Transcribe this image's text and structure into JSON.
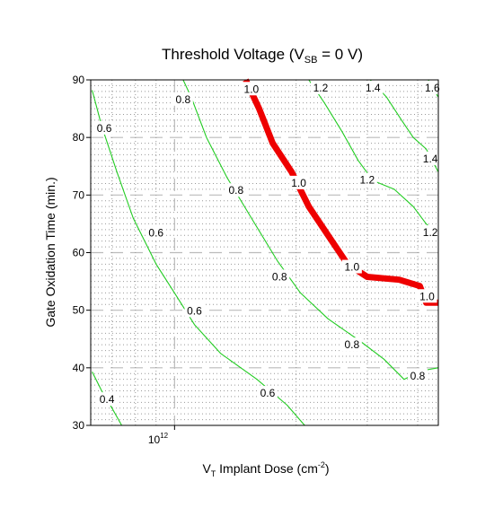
{
  "chart_data": {
    "type": "line",
    "title": "Threshold Voltage (V",
    "title_sub": "SB",
    "title_tail": " = 0 V)",
    "xlabel": "V",
    "xlabel_sub": "T",
    "xlabel_tail": " Implant Dose (cm",
    "xlabel_sup": "-2",
    "xlabel_end": ")",
    "ylabel": "Gate Oxidation Time (min.)",
    "x_scale": "log",
    "xlim": [
      620000000000.0,
      4500000000000.0
    ],
    "ylim": [
      30,
      90
    ],
    "x_tick_label": {
      "base": "10",
      "exp": "12",
      "value": 1000000000000.0
    },
    "y_ticks": [
      30,
      40,
      50,
      60,
      70,
      80,
      90
    ],
    "grid": true,
    "colors": {
      "contour": "#22cc22",
      "highlight": "#ee0000",
      "grid_major": "#bbbbbb",
      "grid_minor": "#999999"
    },
    "series": [
      {
        "level": "0.4",
        "points": [
          [
            625000000000.0,
            39.3
          ],
          [
            660000000000.0,
            36
          ],
          [
            700000000000.0,
            33
          ],
          [
            740000000000.0,
            30
          ]
        ]
      },
      {
        "level": "0.6",
        "points": [
          [
            625000000000.0,
            88.2
          ],
          [
            660000000000.0,
            82
          ],
          [
            720000000000.0,
            74
          ],
          [
            790000000000.0,
            66
          ],
          [
            900000000000.0,
            58
          ],
          [
            1000000000000.0,
            53
          ],
          [
            1120000000000.0,
            47.5
          ],
          [
            1300000000000.0,
            42.5
          ],
          [
            1600000000000.0,
            38
          ],
          [
            1900000000000.0,
            33.5
          ],
          [
            2100000000000.0,
            30
          ]
        ]
      },
      {
        "level": "0.8",
        "points": [
          [
            1050000000000.0,
            90
          ],
          [
            1100000000000.0,
            87
          ],
          [
            1200000000000.0,
            80
          ],
          [
            1350000000000.0,
            73
          ],
          [
            1550000000000.0,
            66
          ],
          [
            1800000000000.0,
            58.5
          ],
          [
            2050000000000.0,
            53
          ],
          [
            2400000000000.0,
            48.5
          ],
          [
            2900000000000.0,
            44.5
          ],
          [
            3300000000000.0,
            41.5
          ],
          [
            3700000000000.0,
            38
          ],
          [
            4100000000000.0,
            39.5
          ],
          [
            4500000000000.0,
            40
          ]
        ]
      },
      {
        "level": "1.0",
        "highlight": true,
        "points": [
          [
            1500000000000.0,
            90
          ],
          [
            1620000000000.0,
            85
          ],
          [
            1750000000000.0,
            79
          ],
          [
            1950000000000.0,
            74
          ],
          [
            2150000000000.0,
            68
          ],
          [
            2400000000000.0,
            63
          ],
          [
            2680000000000.0,
            58
          ],
          [
            3000000000000.0,
            55.8
          ],
          [
            3600000000000.0,
            55.3
          ],
          [
            4050000000000.0,
            54.2
          ],
          [
            4200000000000.0,
            51.3
          ],
          [
            4500000000000.0,
            51.3
          ]
        ]
      },
      {
        "level": "1.2",
        "points": [
          [
            2150000000000.0,
            90
          ],
          [
            2350000000000.0,
            86
          ],
          [
            2600000000000.0,
            81
          ],
          [
            2850000000000.0,
            76
          ],
          [
            3100000000000.0,
            72.5
          ],
          [
            3500000000000.0,
            71
          ],
          [
            3900000000000.0,
            68
          ],
          [
            4200000000000.0,
            65
          ],
          [
            4500000000000.0,
            63
          ]
        ]
      },
      {
        "level": "1.4",
        "points": [
          [
            3050000000000.0,
            90
          ],
          [
            3350000000000.0,
            87
          ],
          [
            3650000000000.0,
            83
          ],
          [
            3900000000000.0,
            80
          ],
          [
            4200000000000.0,
            78
          ],
          [
            4500000000000.0,
            74
          ]
        ]
      },
      {
        "level": "1.6",
        "points": [
          [
            4250000000000.0,
            90
          ],
          [
            4500000000000.0,
            87
          ]
        ]
      }
    ],
    "contour_labels": [
      {
        "text": "0.4",
        "x": 680000000000.0,
        "y": 34.5
      },
      {
        "text": "0.6",
        "x": 670000000000.0,
        "y": 81.6
      },
      {
        "text": "0.6",
        "x": 900000000000.0,
        "y": 63.4
      },
      {
        "text": "0.6",
        "x": 1120000000000.0,
        "y": 49.9
      },
      {
        "text": "0.6",
        "x": 1700000000000.0,
        "y": 35.6
      },
      {
        "text": "0.8",
        "x": 1050000000000.0,
        "y": 86.6
      },
      {
        "text": "0.8",
        "x": 1420000000000.0,
        "y": 70.8
      },
      {
        "text": "0.8",
        "x": 1820000000000.0,
        "y": 55.8
      },
      {
        "text": "0.8",
        "x": 2750000000000.0,
        "y": 44.0
      },
      {
        "text": "0.8",
        "x": 4000000000000.0,
        "y": 38.6
      },
      {
        "text": "1.0",
        "x": 1550000000000.0,
        "y": 88.4
      },
      {
        "text": "1.0",
        "x": 2030000000000.0,
        "y": 72.1
      },
      {
        "text": "1.0",
        "x": 2750000000000.0,
        "y": 57.5
      },
      {
        "text": "1.0",
        "x": 4220000000000.0,
        "y": 52.4
      },
      {
        "text": "1.2",
        "x": 2300000000000.0,
        "y": 88.6
      },
      {
        "text": "1.2",
        "x": 3000000000000.0,
        "y": 72.6
      },
      {
        "text": "1.2",
        "x": 4300000000000.0,
        "y": 63.5
      },
      {
        "text": "1.4",
        "x": 3100000000000.0,
        "y": 88.6
      },
      {
        "text": "1.4",
        "x": 4300000000000.0,
        "y": 76.3
      },
      {
        "text": "1.6",
        "x": 4350000000000.0,
        "y": 88.6
      }
    ]
  }
}
